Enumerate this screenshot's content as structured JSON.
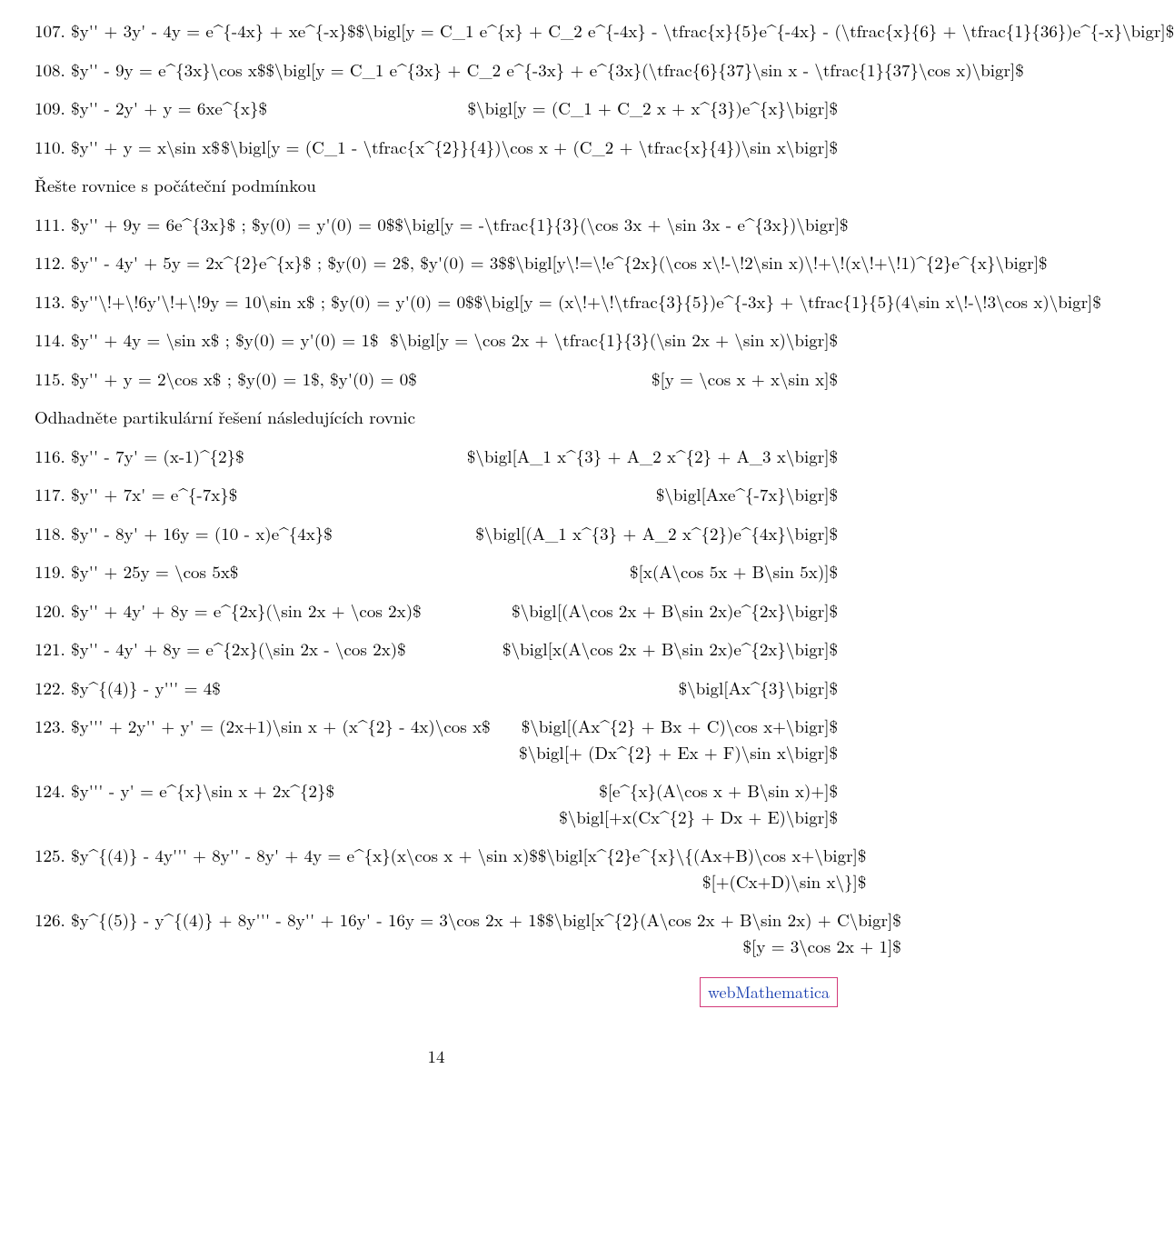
{
  "items": [
    {
      "n": "107.",
      "lhs": "$y'' + 3y' - 4y = e^{-4x} + xe^{-x}$",
      "rhs": "$\\bigl[y = C_1 e^{x} + C_2 e^{-4x} - \\tfrac{x}{5}e^{-4x} - (\\tfrac{x}{6} + \\tfrac{1}{36})e^{-x}\\bigr]$"
    },
    {
      "n": "108.",
      "lhs": "$y'' - 9y = e^{3x}\\cos x$",
      "rhs": "$\\bigl[y = C_1 e^{3x} + C_2 e^{-3x} + e^{3x}(\\tfrac{6}{37}\\sin x - \\tfrac{1}{37}\\cos x)\\bigr]$"
    },
    {
      "n": "109.",
      "lhs": "$y'' - 2y' + y = 6xe^{x}$",
      "rhs": "$\\bigl[y = (C_1 + C_2 x + x^{3})e^{x}\\bigr]$"
    },
    {
      "n": "110.",
      "lhs": "$y'' + y = x\\sin x$",
      "rhs": "$\\bigl[y = (C_1 - \\tfrac{x^{2}}{4})\\cos x + (C_2 + \\tfrac{x}{4})\\sin x\\bigr]$"
    }
  ],
  "section1": "Řešte rovnice s počáteční podmínkou",
  "ivp": [
    {
      "n": "111.",
      "lhs": "$y'' + 9y = 6e^{3x}$ ;  $y(0) = y'(0) = 0$",
      "rhs": "$\\bigl[y = -\\tfrac{1}{3}(\\cos 3x + \\sin 3x - e^{3x})\\bigr]$"
    },
    {
      "n": "112.",
      "lhs": "$y'' - 4y' + 5y = 2x^{2}e^{x}$ ;  $y(0) = 2$, $y'(0) = 3$",
      "rhs": "$\\bigl[y\\!=\\!e^{2x}(\\cos x\\!-\\!2\\sin x)\\!+\\!(x\\!+\\!1)^{2}e^{x}\\bigr]$"
    },
    {
      "n": "113.",
      "lhs": "$y''\\!+\\!6y'\\!+\\!9y = 10\\sin x$ ;  $y(0) = y'(0) = 0$",
      "rhs": "$\\bigl[y = (x\\!+\\!\\tfrac{3}{5})e^{-3x} + \\tfrac{1}{5}(4\\sin x\\!-\\!3\\cos x)\\bigr]$"
    },
    {
      "n": "114.",
      "lhs": "$y'' + 4y = \\sin x$ ;  $y(0) = y'(0) = 1$",
      "rhs": "$\\bigl[y = \\cos 2x + \\tfrac{1}{3}(\\sin 2x + \\sin x)\\bigr]$"
    },
    {
      "n": "115.",
      "lhs": "$y'' + y = 2\\cos x$ ;  $y(0) = 1$, $y'(0) = 0$",
      "rhs": "$[y = \\cos x + x\\sin x]$"
    }
  ],
  "section2": "Odhadněte partikulární řešení následujících rovnic",
  "guess": [
    {
      "n": "116.",
      "lhs": "$y'' - 7y' = (x-1)^{2}$",
      "rhs": "$\\bigl[A_1 x^{3} + A_2 x^{2} + A_3 x\\bigr]$"
    },
    {
      "n": "117.",
      "lhs": "$y'' + 7x' = e^{-7x}$",
      "rhs": "$\\bigl[Axe^{-7x}\\bigr]$"
    },
    {
      "n": "118.",
      "lhs": "$y'' - 8y' + 16y = (10 - x)e^{4x}$",
      "rhs": "$\\bigl[(A_1 x^{3} + A_2 x^{2})e^{4x}\\bigr]$"
    },
    {
      "n": "119.",
      "lhs": "$y'' + 25y = \\cos 5x$",
      "rhs": "$[x(A\\cos 5x + B\\sin 5x)]$"
    },
    {
      "n": "120.",
      "lhs": "$y'' + 4y' + 8y = e^{2x}(\\sin 2x + \\cos 2x)$",
      "rhs": "$\\bigl[(A\\cos 2x + B\\sin 2x)e^{2x}\\bigr]$"
    },
    {
      "n": "121.",
      "lhs": "$y'' - 4y' + 8y = e^{2x}(\\sin 2x - \\cos 2x)$",
      "rhs": "$\\bigl[x(A\\cos 2x + B\\sin 2x)e^{2x}\\bigr]$"
    },
    {
      "n": "122.",
      "lhs": "$y^{(4)} - y''' = 4$",
      "rhs": "$\\bigl[Ax^{3}\\bigr]$"
    },
    {
      "n": "123.",
      "lhs": "$y''' + 2y'' + y' = (2x+1)\\sin x + (x^{2} - 4x)\\cos x$",
      "rhs": [
        "$\\bigl[(Ax^{2} + Bx + C)\\cos x+\\bigr]$",
        "$\\bigl[+ (Dx^{2} + Ex + F)\\sin x\\bigr]$"
      ]
    },
    {
      "n": "124.",
      "lhs": "$y''' - y' = e^{x}\\sin x + 2x^{2}$",
      "rhs": [
        "$[e^{x}(A\\cos x + B\\sin x)+]$",
        "$\\bigl[+x(Cx^{2} + Dx + E)\\bigr]$"
      ]
    },
    {
      "n": "125.",
      "lhs": "$y^{(4)} - 4y''' + 8y'' - 8y' + 4y = e^{x}(x\\cos x + \\sin x)$",
      "rhs": [
        "$\\bigl[x^{2}e^{x}\\{(Ax+B)\\cos x+\\bigr]$",
        "$[+(Cx+D)\\sin x\\}]$"
      ]
    },
    {
      "n": "126.",
      "lhs": "$y^{(5)} - y^{(4)} + 8y''' - 8y'' + 16y' - 16y = 3\\cos 2x + 1$",
      "rhs": [
        "$\\bigl[x^{2}(A\\cos 2x + B\\sin 2x) + C\\bigr]$",
        "$[y = 3\\cos 2x + 1]$"
      ]
    }
  ],
  "link": "webMathematica",
  "pagenum": "14"
}
